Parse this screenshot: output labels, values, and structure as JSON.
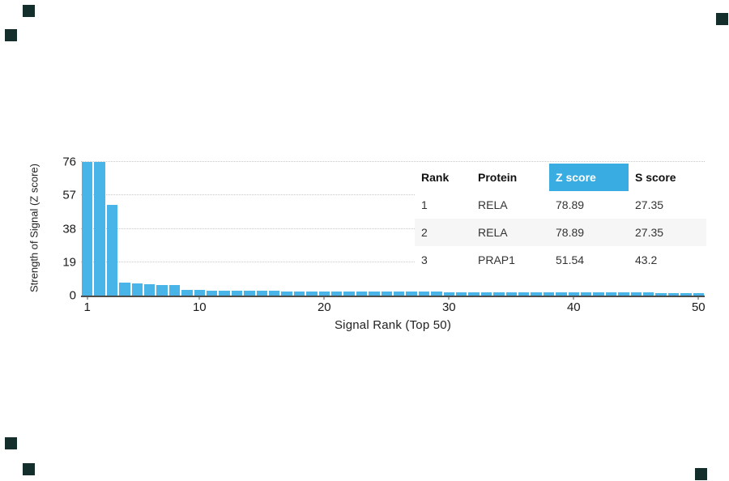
{
  "chart_data": {
    "type": "bar",
    "title": "",
    "xlabel": "Signal Rank (Top 50)",
    "ylabel": "Strength of Signal (Z score)",
    "n_bars": 50,
    "x_ticks": [
      1,
      10,
      20,
      30,
      40,
      50
    ],
    "y_ticks": [
      0,
      19,
      38,
      57,
      76
    ],
    "ylim": [
      0,
      76
    ],
    "grid": "dotted-horizontal",
    "bar_color": "#49b4e7",
    "values": [
      78.89,
      78.89,
      51.54,
      7.2,
      6.8,
      6.5,
      6.2,
      5.8,
      3.4,
      3.1,
      2.9,
      2.8,
      2.7,
      2.7,
      2.6,
      2.6,
      2.5,
      2.5,
      2.4,
      2.4,
      2.35,
      2.3,
      2.3,
      2.25,
      2.2,
      2.2,
      2.15,
      2.1,
      2.1,
      2.05,
      2.0,
      2.0,
      1.95,
      1.95,
      1.9,
      1.9,
      1.85,
      1.85,
      1.8,
      1.8,
      1.75,
      1.75,
      1.7,
      1.7,
      1.65,
      1.65,
      1.6,
      1.6,
      1.55,
      1.5
    ]
  },
  "table": {
    "columns": [
      "Rank",
      "Protein",
      "Z score",
      "S score"
    ],
    "highlight_column": "Z score",
    "highlight_color": "#39ace2",
    "rows": [
      [
        "1",
        "RELA",
        "78.89",
        "27.35"
      ],
      [
        "2",
        "RELA",
        "78.89",
        "27.35"
      ],
      [
        "3",
        "PRAP1",
        "51.54",
        "43.2"
      ]
    ]
  },
  "decorations": {
    "corner_mark_color": "#142e2c"
  }
}
